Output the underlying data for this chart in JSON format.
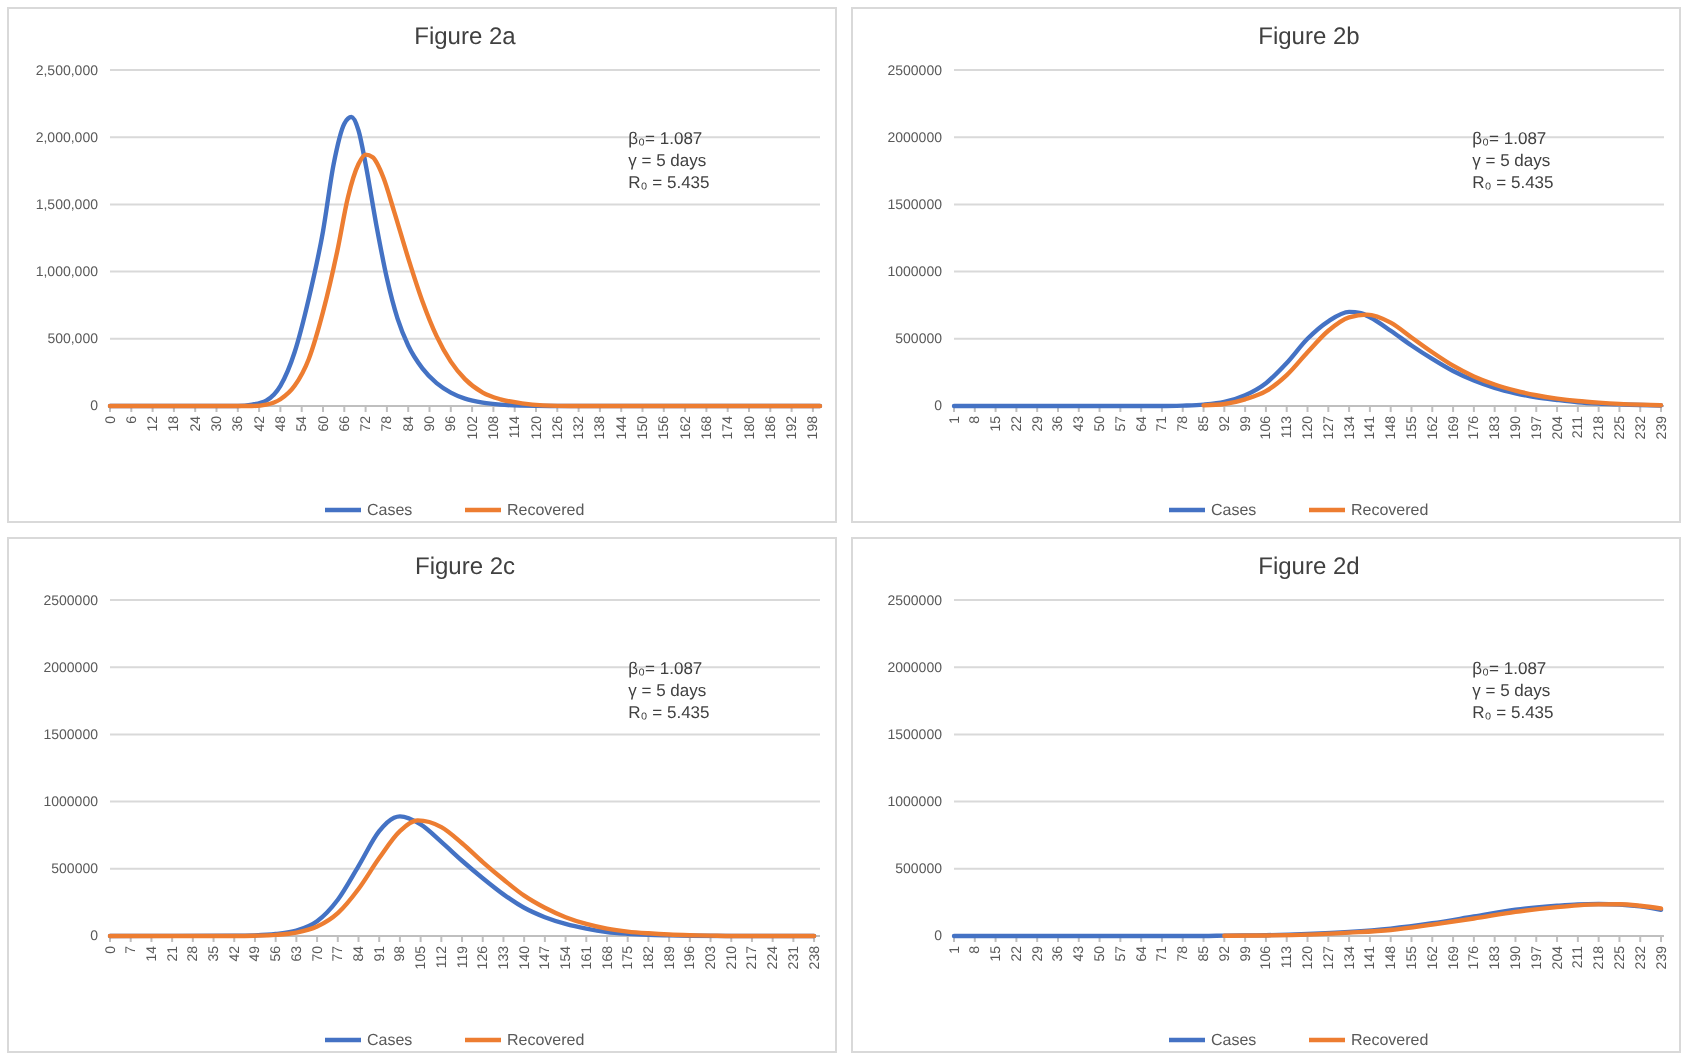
{
  "chart_data": [
    {
      "type": "line",
      "title": "Figure 2a",
      "xlim": [
        0,
        200
      ],
      "xticks": [
        0,
        6,
        12,
        18,
        24,
        30,
        36,
        42,
        48,
        54,
        60,
        66,
        72,
        78,
        84,
        90,
        96,
        102,
        108,
        114,
        120,
        126,
        132,
        138,
        144,
        150,
        156,
        162,
        168,
        174,
        180,
        186,
        192,
        198
      ],
      "ylim": [
        0,
        2500000
      ],
      "yticks": [
        {
          "value": 0,
          "label": "0"
        },
        {
          "value": 500000,
          "label": "500,000"
        },
        {
          "value": 1000000,
          "label": "1,000,000"
        },
        {
          "value": 1500000,
          "label": "1,500,000"
        },
        {
          "value": 2000000,
          "label": "2,000,000"
        },
        {
          "value": 2500000,
          "label": "2,500,000"
        }
      ],
      "grid": "y",
      "legend": "bottom",
      "marker": "none",
      "line_style": "solid",
      "annotations": [
        "β₀= 1.087",
        "γ = 5 days",
        "R₀ =  5.435"
      ],
      "series": [
        {
          "name": "Cases",
          "color": "#4472c4",
          "x": [
            0,
            36,
            40,
            44,
            48,
            52,
            56,
            60,
            63,
            66,
            68,
            70,
            72,
            75,
            78,
            81,
            84,
            88,
            92,
            96,
            100,
            105,
            110,
            116,
            124,
            200
          ],
          "values": [
            0,
            0,
            10000,
            40000,
            150000,
            400000,
            800000,
            1300000,
            1800000,
            2100000,
            2150000,
            2050000,
            1800000,
            1350000,
            950000,
            650000,
            450000,
            280000,
            170000,
            100000,
            55000,
            25000,
            10000,
            3000,
            0,
            0
          ]
        },
        {
          "name": "Recovered",
          "color": "#ed7d31",
          "x": [
            0,
            40,
            44,
            48,
            52,
            56,
            60,
            64,
            67,
            70,
            72,
            74,
            77,
            80,
            84,
            88,
            92,
            96,
            100,
            105,
            110,
            116,
            122,
            130,
            200
          ],
          "values": [
            0,
            0,
            10000,
            50000,
            150000,
            350000,
            700000,
            1150000,
            1550000,
            1800000,
            1870000,
            1850000,
            1700000,
            1450000,
            1100000,
            780000,
            520000,
            330000,
            200000,
            100000,
            50000,
            20000,
            5000,
            0,
            0
          ]
        }
      ]
    },
    {
      "type": "line",
      "title": "Figure 2b",
      "xlim": [
        1,
        240
      ],
      "xticks": [
        1,
        8,
        15,
        22,
        29,
        36,
        43,
        50,
        57,
        64,
        71,
        78,
        85,
        92,
        99,
        106,
        113,
        120,
        127,
        134,
        141,
        148,
        155,
        162,
        169,
        176,
        183,
        190,
        197,
        204,
        211,
        218,
        225,
        232,
        239
      ],
      "ylim": [
        0,
        2500000
      ],
      "yticks": [
        0,
        500000,
        1000000,
        1500000,
        2000000,
        2500000
      ],
      "grid": "y",
      "legend": "bottom",
      "marker": "none",
      "line_style": "solid",
      "annotations": [
        "β₀= 1.087",
        "γ = 5 days",
        "R₀ =  5.435"
      ],
      "series": [
        {
          "name": "Cases",
          "color": "#4472c4",
          "x": [
            1,
            71,
            78,
            85,
            92,
            99,
            106,
            113,
            120,
            127,
            134,
            138,
            141,
            148,
            155,
            162,
            169,
            176,
            183,
            190,
            197,
            204,
            211,
            218,
            225,
            232,
            239
          ],
          "values": [
            0,
            0,
            3000,
            10000,
            30000,
            80000,
            170000,
            320000,
            500000,
            630000,
            700000,
            690000,
            660000,
            560000,
            450000,
            350000,
            260000,
            190000,
            135000,
            95000,
            65000,
            45000,
            28000,
            18000,
            12000,
            7000,
            4000
          ]
        },
        {
          "name": "Recovered",
          "color": "#ed7d31",
          "x": [
            85,
            92,
            99,
            106,
            113,
            120,
            127,
            134,
            140,
            148,
            155,
            162,
            169,
            176,
            183,
            190,
            197,
            204,
            211,
            218,
            225,
            232,
            239
          ],
          "values": [
            5000,
            15000,
            50000,
            110000,
            230000,
            400000,
            560000,
            660000,
            680000,
            620000,
            510000,
            400000,
            300000,
            220000,
            160000,
            115000,
            80000,
            55000,
            37000,
            25000,
            16000,
            10000,
            6000
          ]
        }
      ]
    },
    {
      "type": "line",
      "title": "Figure 2c",
      "xlim": [
        0,
        240
      ],
      "xticks": [
        0,
        7,
        14,
        21,
        28,
        35,
        42,
        49,
        56,
        63,
        70,
        77,
        84,
        91,
        98,
        105,
        112,
        119,
        126,
        133,
        140,
        147,
        154,
        161,
        168,
        175,
        182,
        189,
        196,
        203,
        210,
        217,
        224,
        231,
        238
      ],
      "ylim": [
        0,
        2500000
      ],
      "yticks": [
        0,
        500000,
        1000000,
        1500000,
        2000000,
        2500000
      ],
      "grid": "y",
      "legend": "bottom",
      "marker": "none",
      "line_style": "solid",
      "annotations": [
        "β₀= 1.087",
        "γ = 5 days",
        "R₀ =  5.435"
      ],
      "series": [
        {
          "name": "Cases",
          "color": "#4472c4",
          "x": [
            0,
            42,
            49,
            56,
            63,
            70,
            77,
            84,
            91,
            96,
            98,
            105,
            112,
            119,
            126,
            133,
            140,
            147,
            154,
            161,
            168,
            175,
            182,
            189,
            196,
            210,
            238
          ],
          "values": [
            0,
            2000,
            5000,
            15000,
            40000,
            110000,
            270000,
            520000,
            780000,
            880000,
            890000,
            830000,
            700000,
            560000,
            430000,
            310000,
            210000,
            140000,
            90000,
            55000,
            30000,
            17000,
            9000,
            5000,
            2000,
            0,
            0
          ]
        },
        {
          "name": "Recovered",
          "color": "#ed7d31",
          "x": [
            0,
            42,
            49,
            56,
            63,
            70,
            77,
            84,
            91,
            98,
            104,
            112,
            119,
            126,
            133,
            140,
            147,
            154,
            161,
            168,
            175,
            182,
            189,
            196,
            203,
            210,
            238
          ],
          "values": [
            0,
            0,
            2000,
            8000,
            25000,
            70000,
            170000,
            350000,
            580000,
            780000,
            860000,
            810000,
            690000,
            550000,
            420000,
            300000,
            210000,
            140000,
            90000,
            55000,
            33000,
            20000,
            11000,
            6000,
            3000,
            0,
            0
          ]
        }
      ]
    },
    {
      "type": "line",
      "title": "Figure 2d",
      "xlim": [
        1,
        240
      ],
      "xticks": [
        1,
        8,
        15,
        22,
        29,
        36,
        43,
        50,
        57,
        64,
        71,
        78,
        85,
        92,
        99,
        106,
        113,
        120,
        127,
        134,
        141,
        148,
        155,
        162,
        169,
        176,
        183,
        190,
        197,
        204,
        211,
        218,
        225,
        232,
        239
      ],
      "ylim": [
        0,
        2500000
      ],
      "yticks": [
        0,
        500000,
        1000000,
        1500000,
        2000000,
        2500000
      ],
      "grid": "y",
      "legend": "bottom",
      "marker": "none",
      "line_style": "solid",
      "annotations": [
        "β₀= 1.087",
        "γ = 5 days",
        "R₀ = 5.435"
      ],
      "series": [
        {
          "name": "Cases",
          "color": "#4472c4",
          "x": [
            1,
            85,
            92,
            106,
            120,
            134,
            148,
            162,
            176,
            190,
            204,
            211,
            218,
            232,
            239
          ],
          "values": [
            0,
            0,
            3000,
            6000,
            15000,
            30000,
            55000,
            95000,
            145000,
            195000,
            225000,
            235000,
            238000,
            220000,
            195000
          ]
        },
        {
          "name": "Recovered",
          "color": "#ed7d31",
          "x": [
            92,
            106,
            120,
            134,
            148,
            162,
            176,
            190,
            204,
            211,
            218,
            225,
            232,
            239
          ],
          "values": [
            2000,
            4000,
            10000,
            25000,
            45000,
            85000,
            130000,
            180000,
            215000,
            228000,
            235000,
            236000,
            225000,
            205000
          ]
        }
      ]
    }
  ]
}
